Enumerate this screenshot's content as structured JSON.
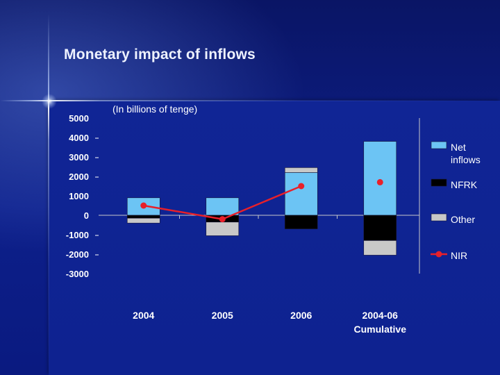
{
  "slide": {
    "title": "Monetary impact of inflows",
    "subtitle": "(In billions of tenge)"
  },
  "chart_data": {
    "type": "bar",
    "stacked": true,
    "categories": [
      "2004",
      "2005",
      "2006",
      "2004-06\nCumulative"
    ],
    "ylim": [
      -3000,
      5000
    ],
    "yticks": [
      5000,
      4000,
      3000,
      2000,
      1000,
      0,
      -1000,
      -2000,
      -3000
    ],
    "legend_position": "right",
    "series": [
      {
        "name": "Net\ninflows",
        "kind": "bar",
        "color": "#6cc4f4",
        "values": [
          900,
          900,
          2200,
          3800
        ]
      },
      {
        "name": "NFRK",
        "kind": "bar",
        "color": "#000000",
        "values": [
          -150,
          -350,
          -700,
          -1300
        ]
      },
      {
        "name": "Other",
        "kind": "bar",
        "color": "#c8c8c8",
        "values": [
          -250,
          -700,
          250,
          -750
        ]
      },
      {
        "name": "NIR",
        "kind": "line",
        "color": "#e8202a",
        "values": [
          500,
          -200,
          1500,
          1700
        ],
        "connected": [
          true,
          true,
          true,
          false
        ]
      }
    ]
  }
}
